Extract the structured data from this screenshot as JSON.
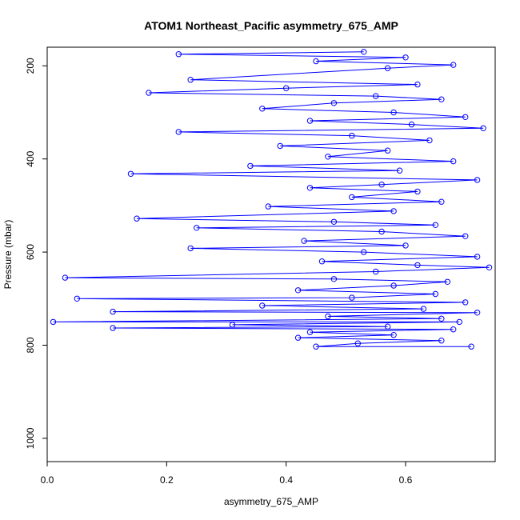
{
  "chart_data": {
    "type": "scatter",
    "title": "ATOM1 Northeast_Pacific asymmetry_675_AMP",
    "xlabel": "asymmetry_675_AMP",
    "ylabel": "Pressure (mbar)",
    "xlim": [
      0.0,
      0.75
    ],
    "ylim": [
      1050,
      160
    ],
    "y_inverted": true,
    "x_ticks": [
      0.0,
      0.2,
      0.4,
      0.6
    ],
    "x_tick_labels": [
      "0.0",
      "0.2",
      "0.4",
      "0.6"
    ],
    "y_ticks": [
      200,
      400,
      600,
      800,
      1000
    ],
    "y_tick_labels": [
      "200",
      "400",
      "600",
      "800",
      "1000"
    ],
    "grid": false,
    "legend": "none",
    "marker": "open-circle",
    "connected": true,
    "color": "#0000ff",
    "series": [
      {
        "points": [
          [
            0.53,
            170
          ],
          [
            0.22,
            175
          ],
          [
            0.6,
            182
          ],
          [
            0.45,
            190
          ],
          [
            0.68,
            198
          ],
          [
            0.57,
            205
          ],
          [
            0.24,
            230
          ],
          [
            0.62,
            240
          ],
          [
            0.4,
            248
          ],
          [
            0.17,
            258
          ],
          [
            0.55,
            265
          ],
          [
            0.66,
            272
          ],
          [
            0.48,
            280
          ],
          [
            0.36,
            292
          ],
          [
            0.58,
            300
          ],
          [
            0.7,
            310
          ],
          [
            0.44,
            318
          ],
          [
            0.61,
            326
          ],
          [
            0.73,
            334
          ],
          [
            0.22,
            342
          ],
          [
            0.51,
            350
          ],
          [
            0.64,
            360
          ],
          [
            0.39,
            372
          ],
          [
            0.57,
            382
          ],
          [
            0.47,
            395
          ],
          [
            0.68,
            405
          ],
          [
            0.34,
            415
          ],
          [
            0.59,
            425
          ],
          [
            0.14,
            432
          ],
          [
            0.72,
            445
          ],
          [
            0.56,
            455
          ],
          [
            0.44,
            462
          ],
          [
            0.62,
            470
          ],
          [
            0.51,
            482
          ],
          [
            0.66,
            492
          ],
          [
            0.37,
            502
          ],
          [
            0.58,
            512
          ],
          [
            0.15,
            528
          ],
          [
            0.48,
            535
          ],
          [
            0.65,
            542
          ],
          [
            0.25,
            548
          ],
          [
            0.56,
            556
          ],
          [
            0.7,
            566
          ],
          [
            0.43,
            576
          ],
          [
            0.6,
            586
          ],
          [
            0.24,
            592
          ],
          [
            0.53,
            600
          ],
          [
            0.72,
            610
          ],
          [
            0.46,
            620
          ],
          [
            0.62,
            628
          ],
          [
            0.74,
            633
          ],
          [
            0.55,
            642
          ],
          [
            0.03,
            655
          ],
          [
            0.48,
            658
          ],
          [
            0.67,
            664
          ],
          [
            0.58,
            672
          ],
          [
            0.42,
            682
          ],
          [
            0.65,
            690
          ],
          [
            0.51,
            698
          ],
          [
            0.05,
            700
          ],
          [
            0.7,
            708
          ],
          [
            0.36,
            715
          ],
          [
            0.63,
            722
          ],
          [
            0.11,
            728
          ],
          [
            0.72,
            730
          ],
          [
            0.47,
            738
          ],
          [
            0.66,
            743
          ],
          [
            0.01,
            750
          ],
          [
            0.69,
            750
          ],
          [
            0.31,
            756
          ],
          [
            0.57,
            760
          ],
          [
            0.11,
            763
          ],
          [
            0.68,
            766
          ],
          [
            0.44,
            772
          ],
          [
            0.58,
            778
          ],
          [
            0.42,
            784
          ],
          [
            0.66,
            790
          ],
          [
            0.52,
            796
          ],
          [
            0.45,
            803
          ],
          [
            0.71,
            803
          ]
        ]
      }
    ]
  }
}
